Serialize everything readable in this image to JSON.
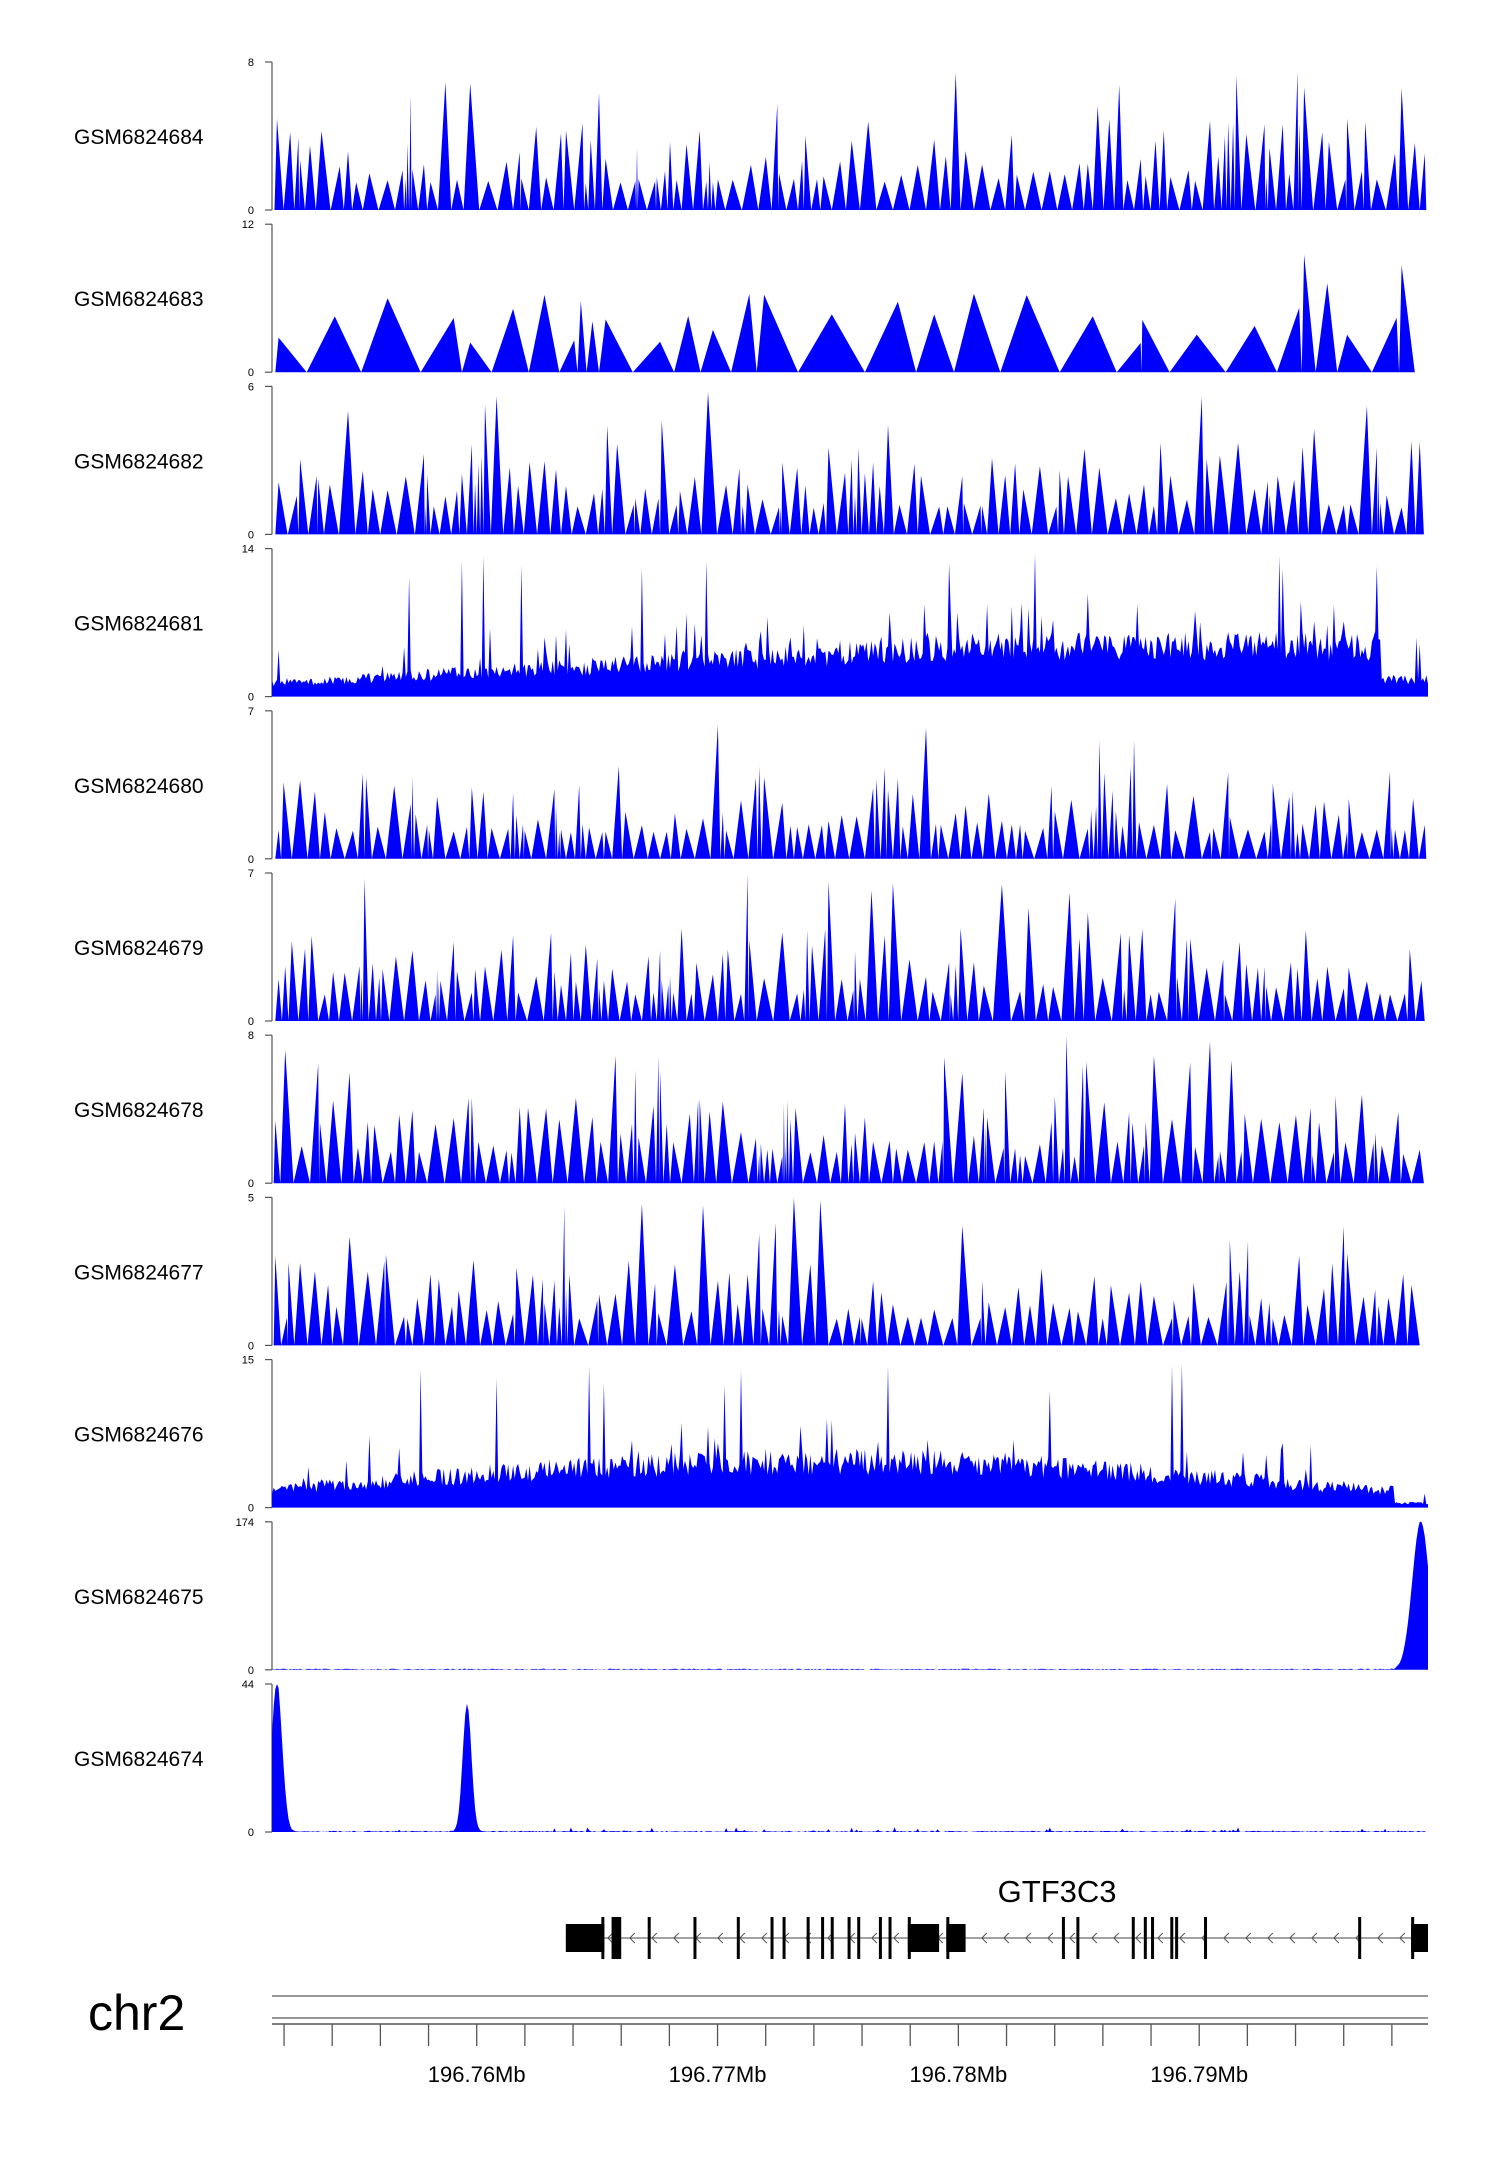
{
  "chart_data": {
    "type": "area",
    "x_range": [
      196.7515,
      196.7995
    ],
    "x_unit": "Mb",
    "tracks": [
      {
        "name": "GSM6824684",
        "ymax": "8",
        "ymin": "0",
        "max": 8,
        "color": "#0000ff",
        "style": "sparse"
      },
      {
        "name": "GSM6824683",
        "ymax": "12",
        "ymin": "0",
        "max": 12,
        "color": "#0000ff",
        "style": "very_sparse"
      },
      {
        "name": "GSM6824682",
        "ymax": "6",
        "ymin": "0",
        "max": 6,
        "color": "#0000ff",
        "style": "sparse"
      },
      {
        "name": "GSM6824681",
        "ymax": "14",
        "ymin": "0",
        "max": 14,
        "color": "#0000ff",
        "style": "dense"
      },
      {
        "name": "GSM6824680",
        "ymax": "7",
        "ymin": "0",
        "max": 7,
        "color": "#0000ff",
        "style": "sparse"
      },
      {
        "name": "GSM6824679",
        "ymax": "7",
        "ymin": "0",
        "max": 7,
        "color": "#0000ff",
        "style": "sparse"
      },
      {
        "name": "GSM6824678",
        "ymax": "8",
        "ymin": "0",
        "max": 8,
        "color": "#0000ff",
        "style": "sparse"
      },
      {
        "name": "GSM6824677",
        "ymax": "5",
        "ymin": "0",
        "max": 5,
        "color": "#0000ff",
        "style": "sparse"
      },
      {
        "name": "GSM6824676",
        "ymax": "15",
        "ymin": "0",
        "max": 15,
        "color": "#0000ff",
        "style": "dense"
      },
      {
        "name": "GSM6824675",
        "ymax": "174",
        "ymin": "0",
        "max": 174,
        "color": "#0000ff",
        "style": "peak_end",
        "peaks": [
          {
            "pos": 196.7992,
            "height": 174,
            "width": 0.00035
          }
        ]
      },
      {
        "name": "GSM6824674",
        "ymax": "44",
        "ymin": "0",
        "max": 44,
        "color": "#0000ff",
        "style": "peaks",
        "peaks": [
          {
            "pos": 196.7517,
            "height": 44,
            "width": 0.00022
          },
          {
            "pos": 196.7596,
            "height": 38,
            "width": 0.00018
          }
        ]
      }
    ],
    "gene": {
      "name": "GTF3C3",
      "strand": "-",
      "start": 196.7637,
      "end": 196.7995,
      "exons": [
        [
          196.7637,
          196.7653
        ],
        [
          196.7656,
          196.766
        ],
        [
          196.7671,
          196.7672
        ],
        [
          196.769,
          196.7691
        ],
        [
          196.7708,
          196.7709
        ],
        [
          196.7722,
          196.7723
        ],
        [
          196.7727,
          196.7728
        ],
        [
          196.7737,
          196.7738
        ],
        [
          196.7743,
          196.7744
        ],
        [
          196.7747,
          196.7748
        ],
        [
          196.7754,
          196.7755
        ],
        [
          196.7758,
          196.7759
        ],
        [
          196.7767,
          196.7768
        ],
        [
          196.7771,
          196.7772
        ],
        [
          196.7779,
          196.7792
        ],
        [
          196.7795,
          196.7803
        ],
        [
          196.7843,
          196.7844
        ],
        [
          196.7849,
          196.785
        ],
        [
          196.7872,
          196.7873
        ],
        [
          196.7877,
          196.7878
        ],
        [
          196.788,
          196.7881
        ],
        [
          196.7888,
          196.7889
        ],
        [
          196.789,
          196.7891
        ],
        [
          196.7902,
          196.7903
        ],
        [
          196.7966,
          196.7967
        ],
        [
          196.7988,
          196.7995
        ]
      ]
    },
    "chromosome": "chr2",
    "tick_labels": [
      "196.76Mb",
      "196.77Mb",
      "196.78Mb",
      "196.79Mb"
    ],
    "tick_values": [
      196.76,
      196.77,
      196.78,
      196.79
    ],
    "minor_tick_step": 0.002
  }
}
